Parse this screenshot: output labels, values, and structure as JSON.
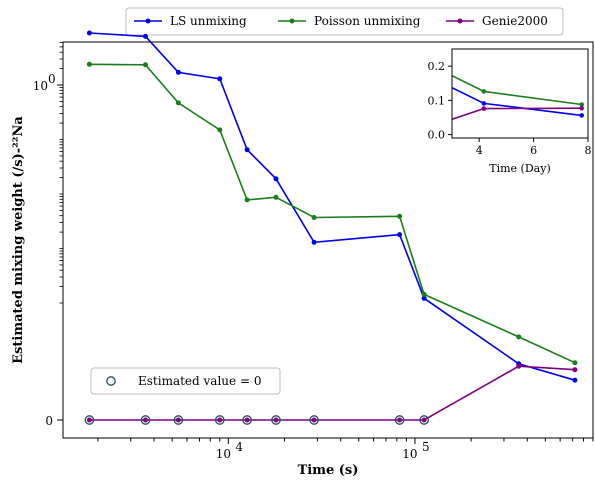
{
  "chart_data": [
    {
      "type": "line",
      "xlabel": "Time (s)",
      "ylabel": "Estimated mixing weight (/s)-²²Na",
      "xscale": "log",
      "yscale": "symlog",
      "xlim": [
        1300,
        900000
      ],
      "x_ticks": [
        {
          "value": 10000,
          "base": "10",
          "exp": "4"
        },
        {
          "value": 100000,
          "base": "10",
          "exp": "5"
        }
      ],
      "y_ticks": [
        {
          "value": 0,
          "label": "0"
        },
        {
          "value": 1,
          "label": "10",
          "exp": "0"
        }
      ],
      "x": [
        1800,
        3600,
        5400,
        9000,
        12600,
        18000,
        28800,
        82800,
        112000,
        360000,
        720000
      ],
      "series": [
        {
          "name": "LS unmixing",
          "color": "#0000ee",
          "values": [
            9.0,
            7.8,
            1.7,
            1.3,
            0.065,
            0.019,
            0.0013,
            0.0018,
            0.000122,
            4.8e-05,
            3.4e-05
          ]
        },
        {
          "name": "Poisson unmixing",
          "color": "#1a7f1a",
          "values": [
            2.4,
            2.35,
            0.47,
            0.15,
            0.0078,
            0.0087,
            0.0037,
            0.0039,
            0.000144,
            7.1e-05,
            4.9e-05
          ]
        },
        {
          "name": "Genie2000",
          "color": "#800080",
          "values": [
            0,
            0,
            0,
            0,
            0,
            0,
            0,
            0,
            0,
            4.6e-05,
            4.3e-05
          ]
        }
      ],
      "zero_markers": {
        "label": "Estimated value = 0",
        "x": [
          1800,
          3600,
          5400,
          9000,
          12600,
          18000,
          28800,
          82800,
          112000
        ]
      },
      "legend": "top-outside"
    },
    {
      "type": "line",
      "inset": true,
      "xlabel": "Time (Day)",
      "xlim": [
        3,
        8
      ],
      "ylim": [
        -0.01,
        0.25
      ],
      "x_ticks": [
        4,
        6,
        8
      ],
      "y_ticks": [
        0.0,
        0.1,
        0.2
      ],
      "x_ticks_labels": [
        "4",
        "6",
        "8"
      ],
      "y_ticks_labels": [
        "0.0",
        "0.1",
        "0.2"
      ],
      "series": [
        {
          "name": "LS unmixing",
          "color": "#0000ee",
          "x": [
            3.0,
            4.17,
            7.77
          ],
          "values": [
            0.137,
            0.091,
            0.056
          ]
        },
        {
          "name": "Poisson unmixing",
          "color": "#1a7f1a",
          "x": [
            3.0,
            4.17,
            7.77
          ],
          "values": [
            0.172,
            0.126,
            0.088
          ]
        },
        {
          "name": "Genie2000",
          "color": "#800080",
          "x": [
            3.0,
            4.17,
            7.77
          ],
          "values": [
            0.045,
            0.076,
            0.077
          ]
        }
      ]
    }
  ]
}
